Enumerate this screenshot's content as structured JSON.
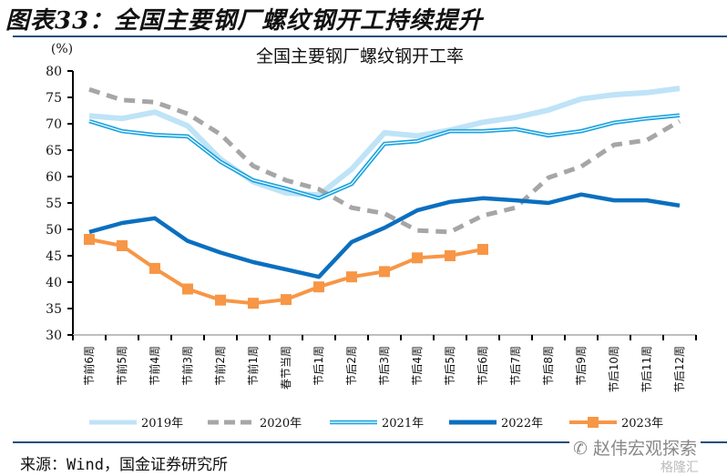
{
  "figure": {
    "title": "图表33：全国主要钢厂螺纹钢开工持续提升",
    "source": "来源：Wind，国金证券研究所",
    "watermark": "赵伟宏观探索",
    "watermark_secondary": "格隆汇"
  },
  "chart_data": {
    "type": "line",
    "title": "全国主要钢厂螺纹钢开工率",
    "ylabel": "(%)",
    "xlabel": "",
    "ylim": [
      30,
      80
    ],
    "yticks": [
      30,
      35,
      40,
      45,
      50,
      55,
      60,
      65,
      70,
      75,
      80
    ],
    "grid": false,
    "legend_position": "bottom",
    "categories": [
      "节前6周",
      "节前5周",
      "节前4周",
      "节前3周",
      "节前2周",
      "节前1周",
      "春节当周",
      "节后1周",
      "节后2周",
      "节后3周",
      "节后4周",
      "节后5周",
      "节后6周",
      "节后7周",
      "节后8周",
      "节后9周",
      "节后10周",
      "节后11周",
      "节后12周"
    ],
    "series": [
      {
        "name": "2019年",
        "color": "#bfe3f7",
        "style": "thick-light",
        "values": [
          71.5,
          71.0,
          72.2,
          69.6,
          63.3,
          59.0,
          56.9,
          56.5,
          61.4,
          68.3,
          67.7,
          68.8,
          70.3,
          71.2,
          72.6,
          74.7,
          75.5,
          75.9,
          76.7
        ]
      },
      {
        "name": "2020年",
        "color": "#a6a6a6",
        "style": "dashed",
        "values": [
          76.5,
          74.5,
          74.1,
          71.9,
          68.0,
          62.0,
          59.3,
          57.6,
          54.1,
          53.0,
          49.8,
          49.5,
          52.6,
          54.1,
          59.8,
          61.9,
          66.0,
          66.9,
          70.5
        ]
      },
      {
        "name": "2021年",
        "color": "#1aa3e0",
        "style": "double",
        "values": [
          70.5,
          68.6,
          67.9,
          67.6,
          62.8,
          59.3,
          57.7,
          55.9,
          58.6,
          66.2,
          66.7,
          68.6,
          68.6,
          69.0,
          67.8,
          68.6,
          70.2,
          71.0,
          71.6
        ]
      },
      {
        "name": "2022年",
        "color": "#0b6fbf",
        "style": "thick",
        "values": [
          49.5,
          51.2,
          52.1,
          47.8,
          45.6,
          43.8,
          42.4,
          41.0,
          47.6,
          50.3,
          53.6,
          55.2,
          55.9,
          55.5,
          55.0,
          56.6,
          55.5,
          55.5,
          54.5
        ]
      },
      {
        "name": "2023年",
        "color": "#f79646",
        "style": "square-markers",
        "values": [
          48.1,
          46.9,
          42.6,
          38.7,
          36.6,
          36.0,
          36.7,
          39.1,
          41.0,
          42.0,
          44.6,
          45.0,
          46.2
        ]
      }
    ]
  }
}
